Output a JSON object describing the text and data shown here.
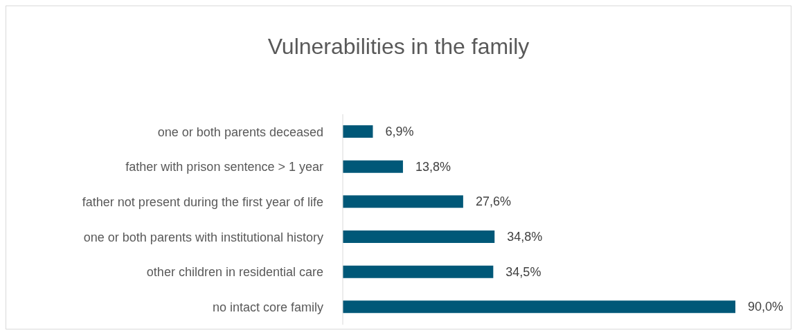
{
  "chart_data": {
    "type": "bar",
    "orientation": "horizontal",
    "title": "Vulnerabilities in the family",
    "categories": [
      "one or both parents deceased",
      "father with prison sentence > 1 year",
      "father not present during the first year of life",
      "one or both parents with institutional history",
      "other children in residential care",
      "no intact core family"
    ],
    "values": [
      6.9,
      13.8,
      27.6,
      34.8,
      34.5,
      90.0
    ],
    "value_labels": [
      "6,9%",
      "13,8%",
      "27,6%",
      "34,8%",
      "34,5%",
      "90,0%"
    ],
    "color": "#005878"
  }
}
